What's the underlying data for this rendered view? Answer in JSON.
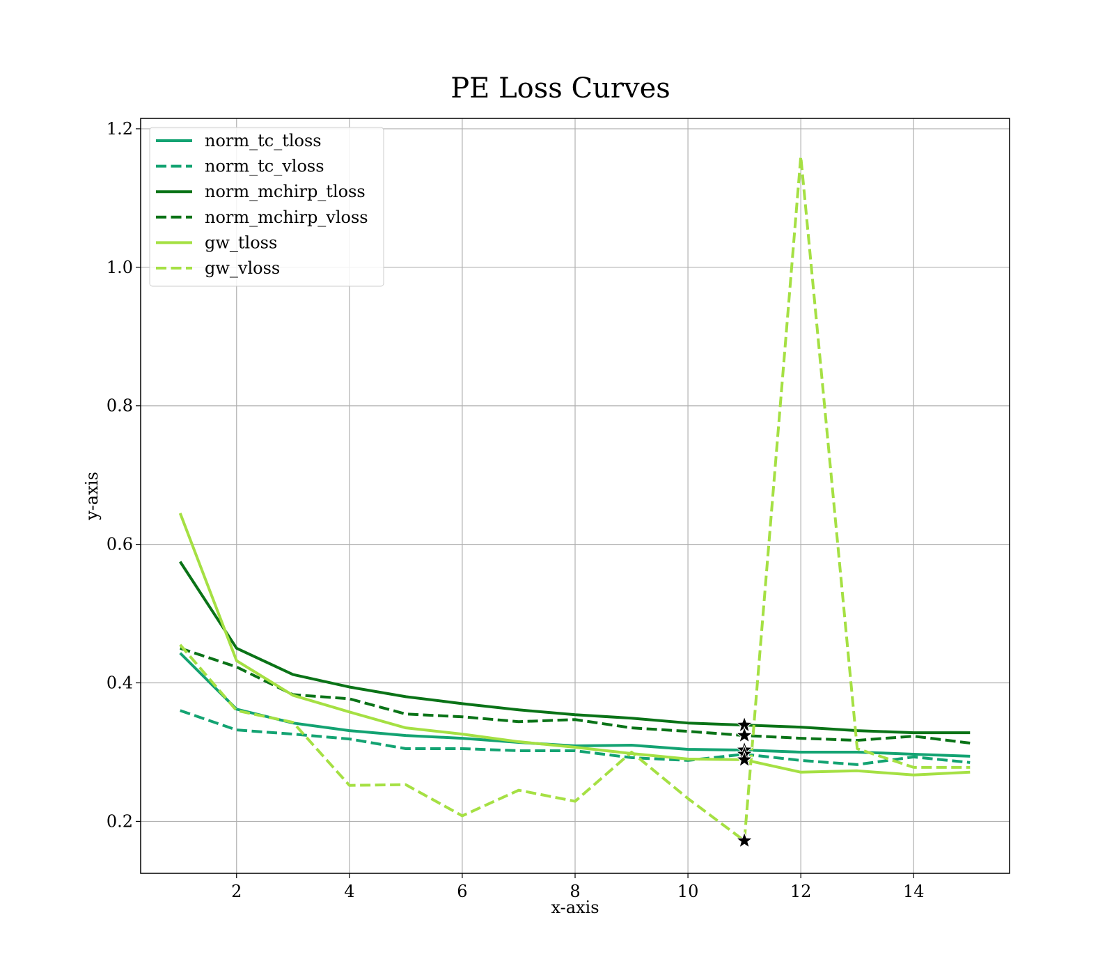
{
  "chart_data": {
    "type": "line",
    "title": "PE Loss Curves",
    "xlabel": "x-axis",
    "ylabel": "y-axis",
    "xlim": [
      0.3,
      15.7
    ],
    "ylim": [
      0.125,
      1.215
    ],
    "xticks": [
      2,
      4,
      6,
      8,
      10,
      12,
      14
    ],
    "xtick_labels": [
      "2",
      "4",
      "6",
      "8",
      "10",
      "12",
      "14"
    ],
    "yticks": [
      0.2,
      0.4,
      0.6,
      0.8,
      1.0,
      1.2
    ],
    "ytick_labels": [
      "0.2",
      "0.4",
      "0.6",
      "0.8",
      "1.0",
      "1.2"
    ],
    "grid": true,
    "legend_position": "top-left",
    "x": [
      1,
      2,
      3,
      4,
      5,
      6,
      7,
      8,
      9,
      10,
      11,
      12,
      13,
      14,
      15
    ],
    "series": [
      {
        "name": "norm_tc_tloss",
        "color": "#13a372",
        "style": "solid",
        "values": [
          0.443,
          0.362,
          0.342,
          0.331,
          0.324,
          0.32,
          0.314,
          0.309,
          0.31,
          0.304,
          0.303,
          0.3,
          0.3,
          0.297,
          0.294
        ]
      },
      {
        "name": "norm_tc_vloss",
        "color": "#13a372",
        "style": "dashed",
        "values": [
          0.36,
          0.332,
          0.326,
          0.319,
          0.305,
          0.305,
          0.302,
          0.302,
          0.292,
          0.288,
          0.297,
          0.288,
          0.282,
          0.293,
          0.285
        ]
      },
      {
        "name": "norm_mchirp_tloss",
        "color": "#0a7317",
        "style": "solid",
        "values": [
          0.575,
          0.45,
          0.412,
          0.394,
          0.38,
          0.37,
          0.361,
          0.354,
          0.349,
          0.342,
          0.339,
          0.336,
          0.331,
          0.328,
          0.328
        ]
      },
      {
        "name": "norm_mchirp_vloss",
        "color": "#0a7317",
        "style": "dashed",
        "values": [
          0.45,
          0.423,
          0.383,
          0.377,
          0.355,
          0.351,
          0.344,
          0.347,
          0.335,
          0.33,
          0.324,
          0.32,
          0.317,
          0.323,
          0.313
        ]
      },
      {
        "name": "gw_tloss",
        "color": "#a5e043",
        "style": "solid",
        "values": [
          0.645,
          0.432,
          0.382,
          0.358,
          0.335,
          0.326,
          0.315,
          0.307,
          0.298,
          0.29,
          0.289,
          0.271,
          0.273,
          0.267,
          0.271
        ]
      },
      {
        "name": "gw_vloss",
        "color": "#a5e043",
        "style": "dashed",
        "values": [
          0.455,
          0.36,
          0.343,
          0.252,
          0.253,
          0.208,
          0.245,
          0.229,
          0.3,
          0.233,
          0.172,
          1.16,
          0.305,
          0.278,
          0.278
        ]
      }
    ],
    "markers": {
      "symbol": "star",
      "color": "#000000",
      "x": 11,
      "points": [
        {
          "series": "norm_tc_tloss",
          "x": 11,
          "y": 0.303
        },
        {
          "series": "norm_tc_vloss",
          "x": 11,
          "y": 0.297
        },
        {
          "series": "norm_mchirp_tloss",
          "x": 11,
          "y": 0.339
        },
        {
          "series": "norm_mchirp_vloss",
          "x": 11,
          "y": 0.324
        },
        {
          "series": "gw_tloss",
          "x": 11,
          "y": 0.289
        },
        {
          "series": "gw_vloss",
          "x": 11,
          "y": 0.172
        }
      ]
    }
  }
}
